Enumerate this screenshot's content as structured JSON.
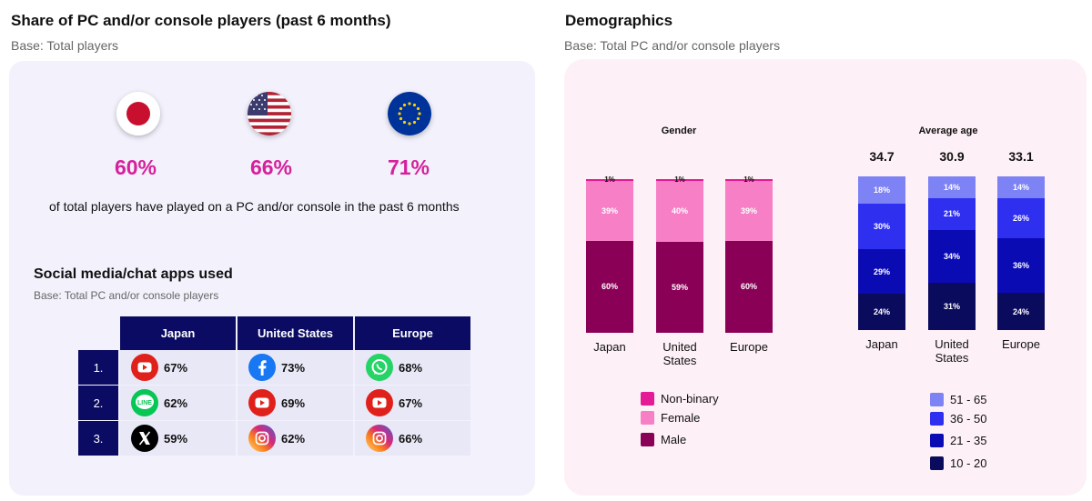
{
  "left": {
    "title": "Share of PC and/or console players (past 6 months)",
    "base": "Base: Total players",
    "countries": [
      {
        "flag": "japan-flag",
        "value": "60%"
      },
      {
        "flag": "usa-flag",
        "value": "66%"
      },
      {
        "flag": "eu-flag",
        "value": "71%"
      }
    ],
    "description": "of total players have played on a PC and/or console in the past 6 months",
    "social": {
      "title": "Social media/chat apps used",
      "base": "Base: Total PC and/or console players",
      "headers": [
        "Japan",
        "United States",
        "Europe"
      ],
      "rows": [
        {
          "rank": "1.",
          "cells": [
            {
              "icon": "youtube-icon",
              "value": "67%"
            },
            {
              "icon": "facebook-icon",
              "value": "73%"
            },
            {
              "icon": "whatsapp-icon",
              "value": "68%"
            }
          ]
        },
        {
          "rank": "2.",
          "cells": [
            {
              "icon": "line-icon",
              "value": "62%"
            },
            {
              "icon": "youtube-icon",
              "value": "69%"
            },
            {
              "icon": "youtube-icon",
              "value": "67%"
            }
          ]
        },
        {
          "rank": "3.",
          "cells": [
            {
              "icon": "x-icon",
              "value": "59%"
            },
            {
              "icon": "instagram-icon",
              "value": "62%"
            },
            {
              "icon": "instagram-icon",
              "value": "66%"
            }
          ]
        }
      ],
      "line_icon_text": "LINE"
    }
  },
  "right": {
    "title": "Demographics",
    "base": "Base: Total PC and/or console players"
  },
  "chart_data": [
    {
      "type": "bar",
      "stacked": true,
      "title": "Gender",
      "categories": [
        "Japan",
        "United States",
        "Europe"
      ],
      "category_labels": [
        [
          "Japan"
        ],
        [
          "United",
          "States"
        ],
        [
          "Europe"
        ]
      ],
      "series": [
        {
          "name": "Male",
          "color": "#8a0057",
          "values": [
            60,
            59,
            60
          ],
          "labels": [
            "60%",
            "59%",
            "60%"
          ]
        },
        {
          "name": "Female",
          "color": "#f77fc6",
          "values": [
            39,
            40,
            39
          ],
          "labels": [
            "39%",
            "40%",
            "39%"
          ]
        },
        {
          "name": "Non-binary",
          "color": "#e51a96",
          "values": [
            1,
            1,
            1
          ],
          "labels": [
            "1%",
            "1%",
            "1%"
          ]
        }
      ],
      "legend": [
        "Non-binary",
        "Female",
        "Male"
      ],
      "ylim": [
        0,
        100
      ]
    },
    {
      "type": "bar",
      "stacked": true,
      "title": "Average age",
      "categories": [
        "Japan",
        "United States",
        "Europe"
      ],
      "category_labels": [
        [
          "Japan"
        ],
        [
          "United",
          "States"
        ],
        [
          "Europe"
        ]
      ],
      "averages": [
        "34.7",
        "30.9",
        "33.1"
      ],
      "series": [
        {
          "name": "10 - 20",
          "color": "#0b0b5e",
          "values": [
            24,
            31,
            24
          ],
          "labels": [
            "24%",
            "31%",
            "24%"
          ]
        },
        {
          "name": "21 - 35",
          "color": "#0b0bb4",
          "values": [
            29,
            34,
            36
          ],
          "labels": [
            "29%",
            "34%",
            "36%"
          ]
        },
        {
          "name": "36 - 50",
          "color": "#2f2ff0",
          "values": [
            30,
            21,
            26
          ],
          "labels": [
            "30%",
            "21%",
            "26%"
          ]
        },
        {
          "name": "51 - 65",
          "color": "#7d82f5",
          "values": [
            18,
            14,
            14
          ],
          "labels": [
            "18%",
            "14%",
            "14%"
          ]
        }
      ],
      "legend": [
        "51 - 65",
        "36 - 50",
        "21 - 35",
        "10 - 20"
      ],
      "ylim": [
        0,
        100
      ]
    }
  ]
}
